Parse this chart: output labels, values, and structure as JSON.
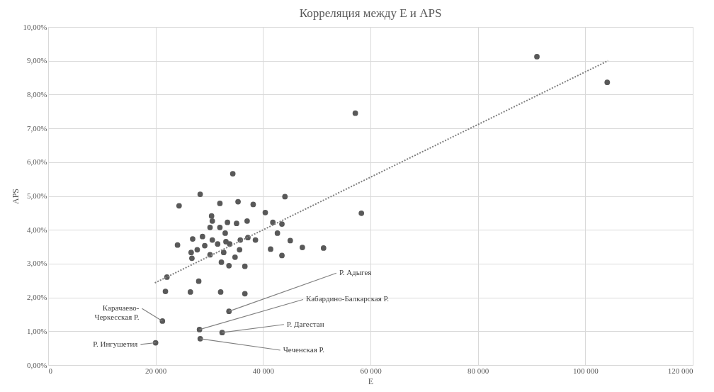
{
  "chart_data": {
    "type": "scatter",
    "title": "Корреляция между E и APS",
    "xlabel": "E",
    "ylabel": "APS",
    "xlim": [
      0,
      120000
    ],
    "ylim": [
      0,
      10
    ],
    "xticks": [
      {
        "value": 0,
        "label": "0"
      },
      {
        "value": 20000,
        "label": "20 000"
      },
      {
        "value": 40000,
        "label": "40 000"
      },
      {
        "value": 60000,
        "label": "60 000"
      },
      {
        "value": 80000,
        "label": "80 000"
      },
      {
        "value": 100000,
        "label": "100 000"
      },
      {
        "value": 120000,
        "label": "120 000"
      }
    ],
    "yticks": [
      {
        "value": 0,
        "label": "0,00%"
      },
      {
        "value": 1,
        "label": "1,00%"
      },
      {
        "value": 2,
        "label": "2,00%"
      },
      {
        "value": 3,
        "label": "3,00%"
      },
      {
        "value": 4,
        "label": "4,00%"
      },
      {
        "value": 5,
        "label": "5,00%"
      },
      {
        "value": 6,
        "label": "6,00%"
      },
      {
        "value": 7,
        "label": "7,00%"
      },
      {
        "value": 8,
        "label": "8,00%"
      },
      {
        "value": 9,
        "label": "9,00%"
      },
      {
        "value": 10,
        "label": "10,00%"
      }
    ],
    "grid": true,
    "series": [
      {
        "marker": "circle",
        "color": "#595959",
        "x": [
          34370,
          28300,
          24370,
          31970,
          35350,
          38170,
          44080,
          40420,
          30420,
          37040,
          41830,
          43520,
          42680,
          45070,
          47320,
          51270,
          41410,
          43520,
          24080,
          26900,
          28730,
          30560,
          31970,
          33380,
          35070,
          32960,
          30560,
          31550,
          33100,
          33800,
          35770,
          37180,
          38590,
          35630,
          29150,
          27750,
          26620,
          26760,
          30140,
          32680,
          34790,
          32250,
          33660,
          36620,
          22110,
          28030,
          21830,
          26480,
          32110,
          36620,
          33660,
          30140,
          21270,
          20000,
          28170,
          32390,
          28310,
          90990,
          104080,
          57180,
          58310
        ],
        "values": [
          5.66,
          5.05,
          4.71,
          4.78,
          4.83,
          4.75,
          4.98,
          4.51,
          4.41,
          4.26,
          4.22,
          4.17,
          3.9,
          3.68,
          3.48,
          3.46,
          3.43,
          3.24,
          3.55,
          3.73,
          3.8,
          4.26,
          4.07,
          4.22,
          4.19,
          3.9,
          3.7,
          3.58,
          3.65,
          3.58,
          3.7,
          3.77,
          3.7,
          3.41,
          3.53,
          3.41,
          3.33,
          3.16,
          3.26,
          3.33,
          3.19,
          3.04,
          2.94,
          2.92,
          2.6,
          2.48,
          2.18,
          2.16,
          2.16,
          2.11,
          1.59,
          4.07,
          1.3,
          0.66,
          1.05,
          0.96,
          0.78,
          9.12,
          8.36,
          7.45,
          4.49
        ]
      },
      {
        "type": "line",
        "color": "#7f7f7f",
        "line_style": "dotted",
        "x": [
          19860,
          104225
        ],
        "values": [
          2.43,
          9.0
        ]
      }
    ],
    "annotations": [
      {
        "text": "Карачаево-Черкесская Р.",
        "x": 21270,
        "y": 1.3
      },
      {
        "text": "Р. Ингушетия",
        "x": 20000,
        "y": 0.66
      },
      {
        "text": "Р. Адыгея",
        "x": 33660,
        "y": 1.59
      },
      {
        "text": "Кабардино-Балкарская Р.",
        "x": 28170,
        "y": 1.05
      },
      {
        "text": "Р. Дагестан",
        "x": 32390,
        "y": 0.96
      },
      {
        "text": "Чеченская Р.",
        "x": 28310,
        "y": 0.78
      }
    ]
  }
}
